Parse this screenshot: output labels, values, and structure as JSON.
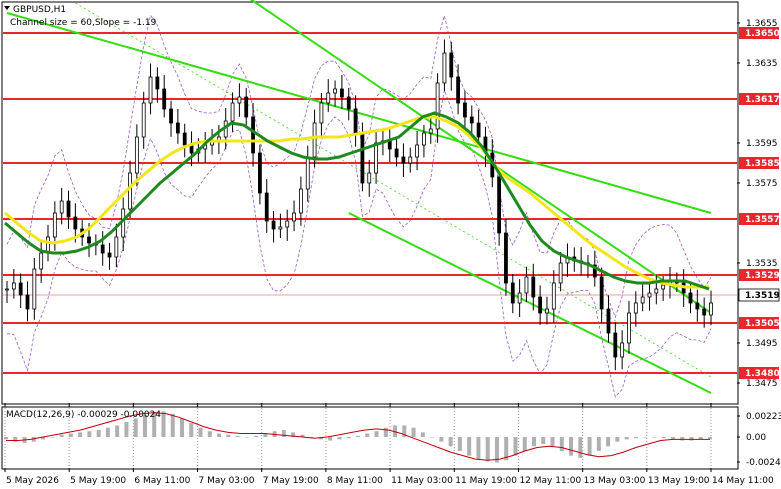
{
  "chart_data": [
    {
      "type": "line",
      "chart": "price",
      "symbol_label": "GBPUSD,H1",
      "indicator_label": "Channel size = 60,Slope = -1.19",
      "ylim": [
        1.3465,
        1.3665
      ],
      "yticks": [
        {
          "value": 1.3655,
          "label": "1.3655"
        },
        {
          "value": 1.3635,
          "label": "1.3635"
        },
        {
          "value": 1.3595,
          "label": "1.3595"
        },
        {
          "value": 1.3575,
          "label": "1.3575"
        },
        {
          "value": 1.3535,
          "label": "1.3535"
        },
        {
          "value": 1.3495,
          "label": "1.3495"
        },
        {
          "value": 1.3475,
          "label": "1.3475"
        }
      ],
      "levels": [
        {
          "value": 1.365,
          "label": "1.3650",
          "color": "#e8262b"
        },
        {
          "value": 1.3617,
          "label": "1.3617",
          "color": "#e8262b"
        },
        {
          "value": 1.3585,
          "label": "1.3585",
          "color": "#e8262b"
        },
        {
          "value": 1.3557,
          "label": "1.3557",
          "color": "#e8262b"
        },
        {
          "value": 1.3529,
          "label": "1.3529",
          "color": "#e8262b"
        },
        {
          "value": 1.3505,
          "label": "1.3505",
          "color": "#e8262b"
        },
        {
          "value": 1.348,
          "label": "1.3480",
          "color": "#e8262b"
        }
      ],
      "current_price": {
        "value": 1.3519,
        "label": "1.3519"
      },
      "xticks": [
        "5 May 2026",
        "5 May 19:00",
        "6 May 11:00",
        "7 May 03:00",
        "7 May 19:00",
        "8 May 11:00",
        "11 May 03:00",
        "11 May 19:00",
        "12 May 11:00",
        "13 May 03:00",
        "13 May 19:00",
        "14 May 11:00"
      ],
      "price_path": [
        1.3522,
        1.3525,
        1.3519,
        1.3512,
        1.3532,
        1.354,
        1.3548,
        1.356,
        1.3566,
        1.3558,
        1.3552,
        1.3548,
        1.3545,
        1.3544,
        1.354,
        1.3538,
        1.3548,
        1.3562,
        1.358,
        1.3598,
        1.3615,
        1.3628,
        1.3622,
        1.3612,
        1.3605,
        1.36,
        1.3594,
        1.359,
        1.3592,
        1.3594,
        1.3596,
        1.3598,
        1.3606,
        1.3615,
        1.3618,
        1.3608,
        1.359,
        1.357,
        1.3556,
        1.3552,
        1.3553,
        1.3556,
        1.356,
        1.3572,
        1.3588,
        1.3605,
        1.3615,
        1.362,
        1.3622,
        1.3618,
        1.3612,
        1.36,
        1.3575,
        1.358,
        1.3595,
        1.3596,
        1.3592,
        1.3588,
        1.3585,
        1.3588,
        1.3594,
        1.36,
        1.3602,
        1.3625,
        1.364,
        1.3628,
        1.3615,
        1.3608,
        1.3605,
        1.3598,
        1.359,
        1.3578,
        1.355,
        1.3525,
        1.3515,
        1.352,
        1.3528,
        1.3518,
        1.351,
        1.3512,
        1.3525,
        1.3535,
        1.3538,
        1.3536,
        1.3535,
        1.3534,
        1.3528,
        1.3512,
        1.35,
        1.3488,
        1.3495,
        1.351,
        1.3515,
        1.3518,
        1.352,
        1.3522,
        1.3524,
        1.3526,
        1.3525,
        1.352,
        1.3515,
        1.3512,
        1.3509,
        1.3515
      ],
      "ma_green": [
        1.3555,
        1.355,
        1.3545,
        1.3541,
        1.354,
        1.354,
        1.3541,
        1.3543,
        1.3546,
        1.3551,
        1.3557,
        1.3563,
        1.3569,
        1.3575,
        1.358,
        1.3585,
        1.359,
        1.3596,
        1.3601,
        1.3605,
        1.3604,
        1.36,
        1.3596,
        1.3593,
        1.359,
        1.3588,
        1.3587,
        1.3587,
        1.3588,
        1.359,
        1.3592,
        1.3594,
        1.3596,
        1.3598,
        1.3603,
        1.3608,
        1.361,
        1.3608,
        1.3605,
        1.36,
        1.3593,
        1.3584,
        1.3574,
        1.3564,
        1.3554,
        1.3546,
        1.3541,
        1.3538,
        1.3536,
        1.3534,
        1.3531,
        1.3528,
        1.3526,
        1.3525,
        1.3525,
        1.3526,
        1.3526,
        1.3526,
        1.3524,
        1.3522
      ],
      "ma_yellow": [
        1.356,
        1.3555,
        1.355,
        1.3546,
        1.3545,
        1.3546,
        1.3548,
        1.3552,
        1.3558,
        1.3564,
        1.357,
        1.3576,
        1.3581,
        1.3586,
        1.359,
        1.3593,
        1.3595,
        1.3596,
        1.3596,
        1.3596,
        1.3596,
        1.3596,
        1.3596,
        1.3596,
        1.3597,
        1.3597,
        1.3598,
        1.3598,
        1.3598,
        1.3599,
        1.36,
        1.3601,
        1.3602,
        1.3604,
        1.3606,
        1.3608,
        1.3608,
        1.3606,
        1.3603,
        1.3598,
        1.3592,
        1.3584,
        1.3578,
        1.3574,
        1.357,
        1.3565,
        1.356,
        1.3555,
        1.355,
        1.3545,
        1.3541,
        1.3537,
        1.3533,
        1.353,
        1.3527,
        1.3525,
        1.3524,
        1.3523,
        1.3523,
        1.3523
      ],
      "channel_lines": [
        {
          "from": [
            0,
            1.366
          ],
          "to": [
            103,
            1.356
          ],
          "color": "#33dd11"
        },
        {
          "from": [
            30,
            1.368
          ],
          "to": [
            103,
            1.351
          ],
          "color": "#33dd11"
        },
        {
          "from": [
            50,
            1.356
          ],
          "to": [
            103,
            1.347
          ],
          "color": "#33dd11"
        }
      ]
    },
    {
      "type": "bar",
      "chart": "macd",
      "indicator_label": "MACD(12,26,9) -0.00029 -0.00024",
      "ylim": [
        -0.00032,
        0.0003
      ],
      "yticks": [
        {
          "value": 0.00223,
          "label": "0.00223"
        },
        {
          "value": 0.0,
          "label": "0.00"
        },
        {
          "value": -0.00246,
          "label": "-0.00246"
        }
      ],
      "histogram": [
        -0.2,
        -0.4,
        -0.5,
        -0.4,
        -0.2,
        0.0,
        0.2,
        0.3,
        0.4,
        0.5,
        0.6,
        0.8,
        1.0,
        1.3,
        1.6,
        1.9,
        2.1,
        2.2,
        2.0,
        1.6,
        1.2,
        0.8,
        0.5,
        0.3,
        0.2,
        0.1,
        0.0,
        0.1,
        0.3,
        0.5,
        0.6,
        0.4,
        0.2,
        0.0,
        -0.2,
        -0.3,
        -0.2,
        -0.1,
        0.1,
        0.3,
        0.5,
        0.8,
        1.0,
        1.0,
        0.8,
        0.4,
        0.0,
        -0.4,
        -0.8,
        -1.2,
        -1.6,
        -1.9,
        -2.1,
        -2.2,
        -2.0,
        -1.6,
        -1.2,
        -0.8,
        -0.6,
        -0.8,
        -1.2,
        -1.6,
        -1.8,
        -1.6,
        -1.2,
        -0.8,
        -0.4,
        -0.2,
        -0.1,
        0.0,
        0.0,
        -0.1,
        -0.2,
        -0.3,
        -0.3,
        -0.2,
        -0.2
      ],
      "signal": [
        -0.3,
        -0.3,
        -0.2,
        0.0,
        0.2,
        0.4,
        0.6,
        0.9,
        1.2,
        1.5,
        1.8,
        2.0,
        2.1,
        2.0,
        1.7,
        1.3,
        0.9,
        0.6,
        0.4,
        0.3,
        0.3,
        0.3,
        0.2,
        0.1,
        0.0,
        -0.1,
        0.0,
        0.2,
        0.4,
        0.6,
        0.7,
        0.6,
        0.3,
        -0.1,
        -0.5,
        -0.9,
        -1.3,
        -1.6,
        -1.9,
        -2.0,
        -1.9,
        -1.6,
        -1.2,
        -0.9,
        -0.8,
        -0.9,
        -1.2,
        -1.5,
        -1.7,
        -1.6,
        -1.3,
        -0.9,
        -0.6,
        -0.3,
        -0.2,
        -0.2,
        -0.2,
        -0.2
      ]
    }
  ],
  "colors": {
    "level": "#e8262b",
    "candle": "#000000",
    "ma_green": "#1e8a1e",
    "ma_yellow": "#f2e61a",
    "channel": "#33dd11",
    "channel_mid": "#33dd11",
    "envelope": "#9b59c6",
    "macd_hist": "#b0b0b0",
    "macd_signal": "#c0000a",
    "tag_current": "#ffffff",
    "grid": "#999999"
  }
}
